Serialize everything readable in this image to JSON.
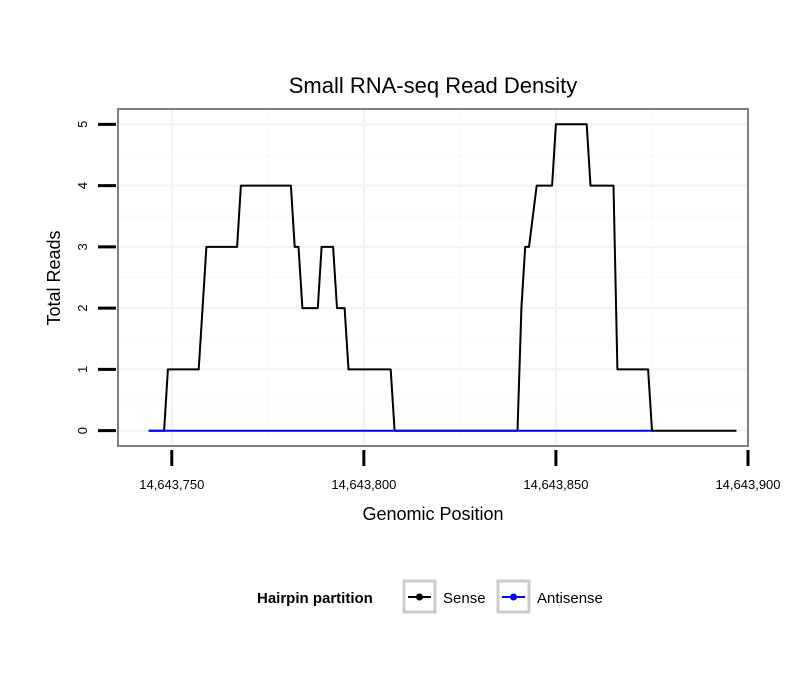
{
  "chart_data": {
    "type": "line",
    "title": "Small RNA-seq Read Density",
    "xlabel": "Genomic Position",
    "ylabel": "Total Reads",
    "xlim": [
      14643736,
      14643900
    ],
    "ylim": [
      -0.25,
      5.25
    ],
    "x_ticks": [
      14643750,
      14643800,
      14643850,
      14643900
    ],
    "x_tick_labels": [
      "14,643,750",
      "14,643,800",
      "14,643,850",
      "14,643,900"
    ],
    "y_ticks": [
      0,
      1,
      2,
      3,
      4,
      5
    ],
    "y_tick_labels": [
      "0",
      "1",
      "2",
      "3",
      "4",
      "5"
    ],
    "grid": true,
    "legend": {
      "title": "Hairpin partition",
      "position": "bottom",
      "entries": [
        "Sense",
        "Antisense"
      ]
    },
    "series": [
      {
        "name": "Sense",
        "color": "#000000",
        "x": [
          14643744,
          14643748,
          14643749,
          14643757,
          14643759,
          14643767,
          14643768,
          14643781,
          14643782,
          14643783,
          14643784,
          14643788,
          14643789,
          14643792,
          14643793,
          14643795,
          14643796,
          14643807,
          14643808,
          14643840,
          14643841,
          14643842,
          14643843,
          14643845,
          14643849,
          14643850,
          14643858,
          14643859,
          14643865,
          14643866,
          14643874,
          14643875,
          14643897
        ],
        "values": [
          0,
          0,
          1,
          1,
          3,
          3,
          4,
          4,
          3,
          3,
          2,
          2,
          3,
          3,
          2,
          2,
          1,
          1,
          0,
          0,
          2,
          3,
          3,
          4,
          4,
          5,
          5,
          4,
          4,
          1,
          1,
          0,
          0
        ]
      },
      {
        "name": "Antisense",
        "color": "#0000ff",
        "x": [
          14643744,
          14643875
        ],
        "values": [
          0,
          0
        ]
      }
    ]
  }
}
